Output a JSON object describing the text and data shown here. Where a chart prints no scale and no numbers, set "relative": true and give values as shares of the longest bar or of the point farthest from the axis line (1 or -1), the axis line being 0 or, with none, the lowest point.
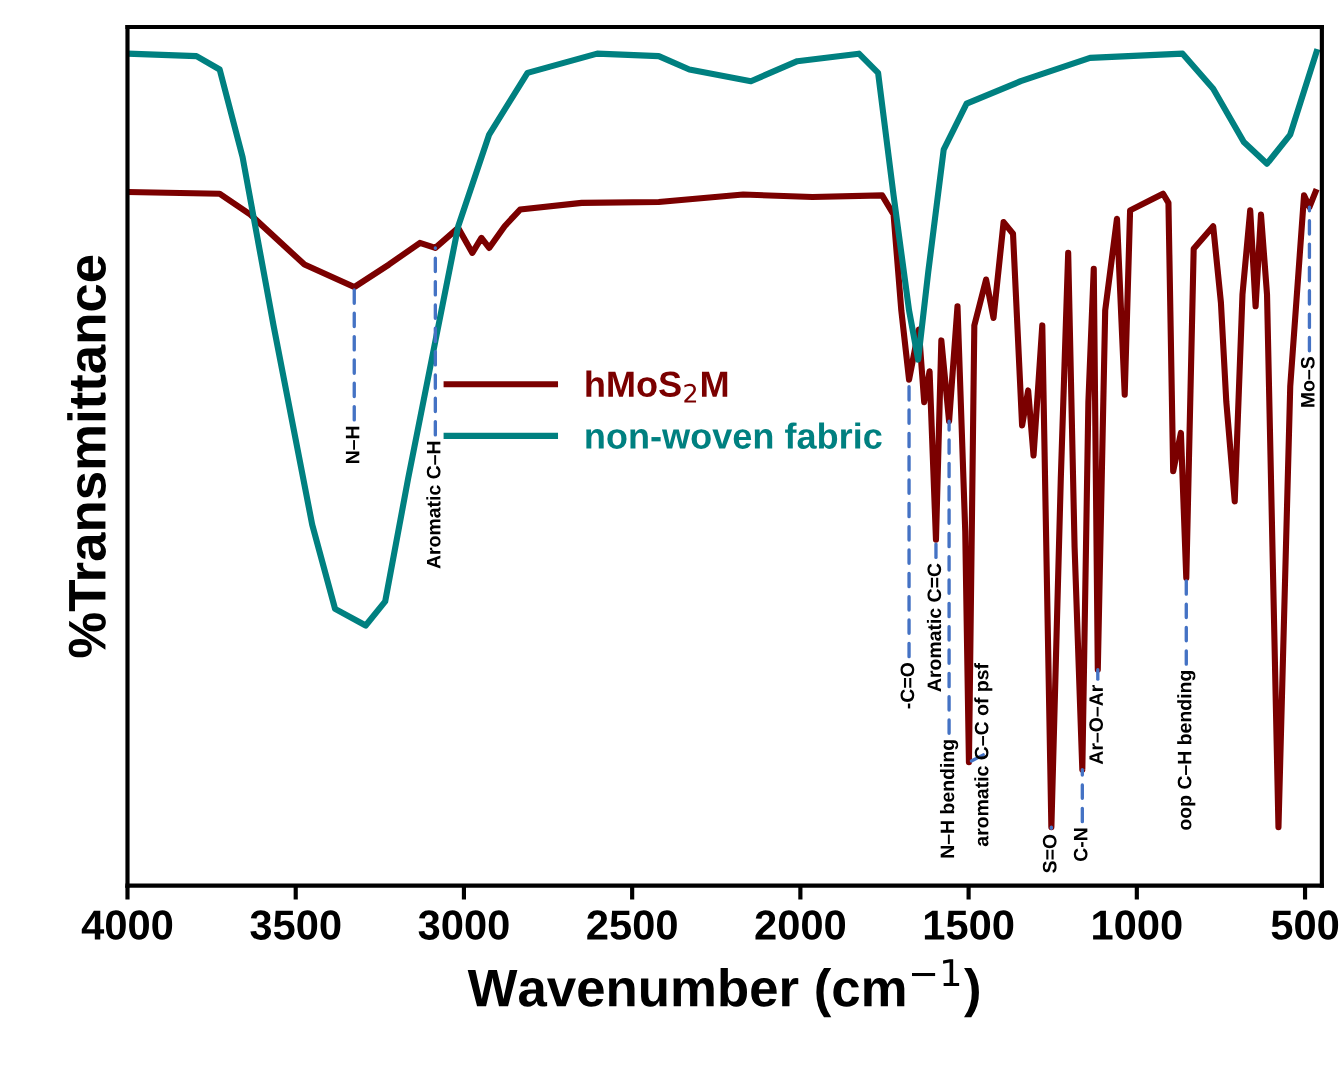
{
  "chart_data": {
    "type": "line",
    "relative": true,
    "xlabel": "Wavenumber (cm$^{−1}$)",
    "ylabel": "%Transmittance",
    "xlim": [
      4000,
      450
    ],
    "xticks": [
      4000,
      3500,
      3000,
      2500,
      2000,
      1500,
      1000,
      500
    ],
    "grid": false,
    "legend": "center left",
    "line_style": "solid",
    "marker": "none",
    "series": [
      {
        "name": "hMoS$_{2}$M",
        "color": "#7b0000",
        "x": [
          4000,
          3726,
          3635,
          3474,
          3326,
          3223,
          3131,
          3085,
          3017,
          2975,
          2948,
          2925,
          2879,
          2833,
          2650,
          2421,
          2170,
          1964,
          1757,
          1723,
          1700,
          1677,
          1648,
          1632,
          1616,
          1597,
          1581,
          1558,
          1533,
          1510,
          1499,
          1483,
          1448,
          1426,
          1396,
          1368,
          1341,
          1323,
          1307,
          1281,
          1254,
          1226,
          1204,
          1185,
          1162,
          1144,
          1128,
          1116,
          1094,
          1059,
          1036,
          1020,
          956,
          922,
          906,
          892,
          869,
          853,
          831,
          773,
          750,
          734,
          709,
          686,
          663,
          647,
          631,
          613,
          579,
          544,
          503,
          487,
          469
        ],
        "values": [
          0.832,
          0.83,
          0.805,
          0.745,
          0.718,
          0.745,
          0.771,
          0.765,
          0.789,
          0.759,
          0.777,
          0.765,
          0.791,
          0.811,
          0.819,
          0.82,
          0.829,
          0.826,
          0.828,
          0.805,
          0.69,
          0.607,
          0.667,
          0.58,
          0.617,
          0.415,
          0.654,
          0.557,
          0.695,
          0.425,
          0.148,
          0.672,
          0.727,
          0.681,
          0.796,
          0.782,
          0.552,
          0.594,
          0.516,
          0.672,
          0.07,
          0.488,
          0.759,
          0.406,
          0.139,
          0.58,
          0.74,
          0.259,
          0.69,
          0.8,
          0.589,
          0.81,
          0.823,
          0.83,
          0.819,
          0.497,
          0.543,
          0.369,
          0.764,
          0.791,
          0.699,
          0.58,
          0.461,
          0.709,
          0.81,
          0.695,
          0.805,
          0.709,
          0.07,
          0.599,
          0.828,
          0.814,
          0.832
        ]
      },
      {
        "name": "non-woven fabric",
        "color": "#008080",
        "x": [
          4000,
          3795,
          3726,
          3658,
          3566,
          3451,
          3383,
          3292,
          3234,
          3166,
          3085,
          3017,
          2925,
          2811,
          2604,
          2421,
          2330,
          2147,
          2009,
          1826,
          1769,
          1723,
          1677,
          1650,
          1620,
          1574,
          1506,
          1345,
          1139,
          864,
          773,
          682,
          613,
          544,
          466
        ],
        "values": [
          0.998,
          0.995,
          0.979,
          0.874,
          0.672,
          0.433,
          0.332,
          0.312,
          0.341,
          0.488,
          0.653,
          0.791,
          0.901,
          0.975,
          0.998,
          0.995,
          0.979,
          0.965,
          0.989,
          0.998,
          0.975,
          0.828,
          0.69,
          0.631,
          0.736,
          0.883,
          0.938,
          0.965,
          0.993,
          0.998,
          0.956,
          0.892,
          0.866,
          0.901,
          1.0
        ]
      }
    ],
    "annotations": [
      {
        "text": "N–H",
        "x": 3326,
        "y": 0.718
      },
      {
        "text": "Aromatic C–H",
        "x": 3085,
        "y": 0.765
      },
      {
        "text": "-C=O",
        "x": 1677,
        "y": 0.607
      },
      {
        "text": "Aromatic C=C",
        "x": 1597,
        "y": 0.415
      },
      {
        "text": "N–H bending",
        "x": 1558,
        "y": 0.557
      },
      {
        "text": "aromatic C–C of psf",
        "x": 1499,
        "y": 0.148
      },
      {
        "text": "S=O",
        "x": 1254,
        "y": 0.07
      },
      {
        "text": "C-N",
        "x": 1162,
        "y": 0.139
      },
      {
        "text": "Ar–O–Ar",
        "x": 1116,
        "y": 0.259
      },
      {
        "text": "oop C–H bending",
        "x": 853,
        "y": 0.369
      },
      {
        "text": "Mo–S",
        "x": 487,
        "y": 0.814
      }
    ]
  }
}
